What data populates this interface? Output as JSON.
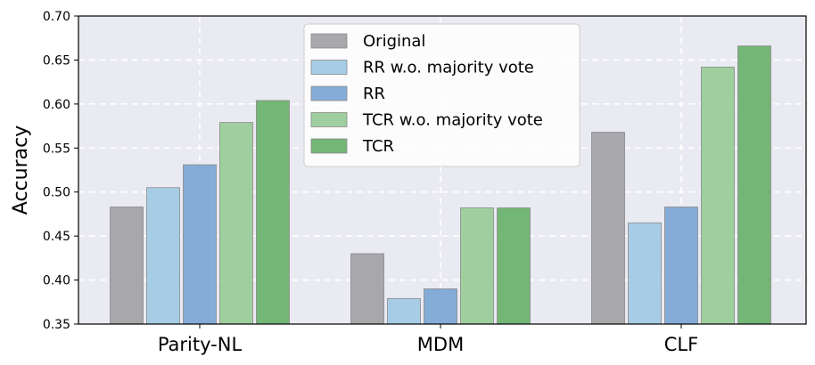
{
  "chart_data": {
    "type": "bar",
    "title": "",
    "xlabel": "",
    "ylabel": "Accuracy",
    "ylim": [
      0.35,
      0.7
    ],
    "yticks": [
      "0.35",
      "0.40",
      "0.45",
      "0.50",
      "0.55",
      "0.60",
      "0.65",
      "0.70"
    ],
    "grid": true,
    "legend_position": "top-center",
    "categories": [
      "Parity-NL",
      "MDM",
      "CLF"
    ],
    "series": [
      {
        "name": "Original",
        "color": "#a8a8ac",
        "values": [
          0.483,
          0.43,
          0.568
        ]
      },
      {
        "name": "RR w.o. majority vote",
        "color": "#a7cde6",
        "values": [
          0.505,
          0.379,
          0.465
        ]
      },
      {
        "name": "RR",
        "color": "#84acd6",
        "values": [
          0.531,
          0.39,
          0.483
        ]
      },
      {
        "name": "TCR w.o. majority vote",
        "color": "#9fcf9e",
        "values": [
          0.579,
          0.482,
          0.642
        ]
      },
      {
        "name": "TCR",
        "color": "#74b676",
        "values": [
          0.604,
          0.482,
          0.666
        ]
      }
    ]
  }
}
